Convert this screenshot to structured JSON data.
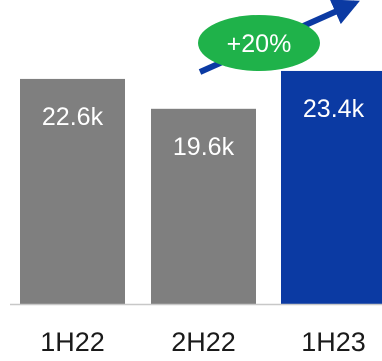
{
  "chart_data": {
    "type": "bar",
    "categories": [
      "1H22",
      "2H22",
      "1H23"
    ],
    "values": [
      22.6,
      19.6,
      23.4
    ],
    "value_labels": [
      "22.6k",
      "19.6k",
      "23.4k"
    ],
    "ylim": [
      0,
      24.5
    ],
    "grid": false,
    "colors": {
      "bar_default": "#7f7f7f",
      "bar_highlight": "#0b3aa3",
      "baseline": "#c8c8c8",
      "value_label": "#ffffff",
      "tick_label": "#1a1a1a"
    },
    "highlight_index": 2,
    "annotation": {
      "text": "+20%",
      "badge_color": "#1fb24a",
      "badge_text_color": "#ffffff",
      "arrow_color": "#0b3aa3"
    }
  }
}
